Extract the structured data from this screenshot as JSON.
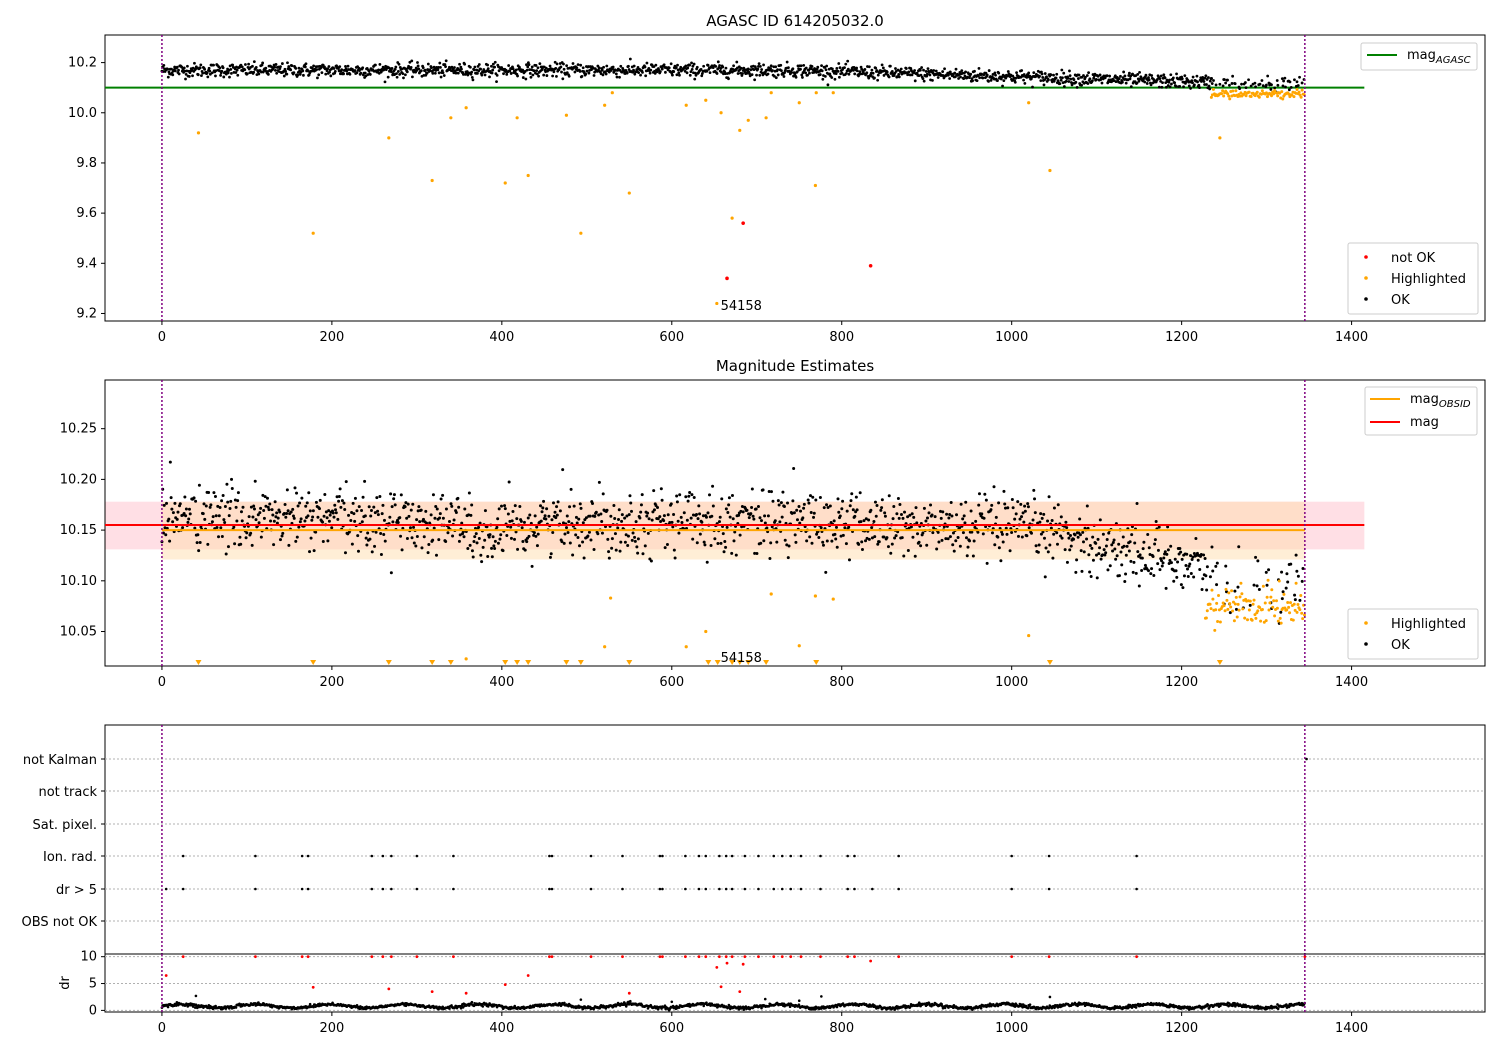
{
  "chart_data": [
    {
      "type": "scatter",
      "title": "AGASC ID 614205032.0",
      "xlabel": "",
      "ylabel": "",
      "xlim": [
        -67,
        1557
      ],
      "ylim": [
        9.17,
        10.31
      ],
      "xticks": [
        "0",
        "200",
        "400",
        "600",
        "800",
        "1000",
        "1200",
        "1400"
      ],
      "xtick_values": [
        0,
        200,
        400,
        600,
        800,
        1000,
        1200,
        1400
      ],
      "yticks": [
        "9.2",
        "9.4",
        "9.6",
        "9.8",
        "10.0",
        "10.2"
      ],
      "ytick_values": [
        9.2,
        9.4,
        9.6,
        9.8,
        10.0,
        10.2
      ],
      "vlines": [
        0,
        1345
      ],
      "hline": {
        "label": "mag",
        "label_sub": "AGASC",
        "value": 10.1,
        "x_range": [
          -67,
          1415
        ],
        "color": "#008000"
      },
      "legend_upper": {
        "position": "top-right"
      },
      "legend_lower": {
        "position": "bottom-right",
        "entries": [
          {
            "label": "not OK",
            "color": "#ff0000"
          },
          {
            "label": "Highlighted",
            "color": "#ffa500"
          },
          {
            "label": "OK",
            "color": "#000000"
          }
        ]
      },
      "annotation": {
        "text": "54158",
        "x": 670,
        "y": 9.19
      },
      "ok_band": {
        "x_range": [
          0,
          1345
        ],
        "center_start": 10.17,
        "center_end": 10.11,
        "spread": 0.03,
        "color": "#000000"
      },
      "highlighted_tail": {
        "x_range": [
          1235,
          1345
        ],
        "center": 10.075,
        "spread": 0.02,
        "color": "#ffa500"
      },
      "highlighted_points": [
        [
          43,
          9.92
        ],
        [
          178,
          9.52
        ],
        [
          267,
          9.9
        ],
        [
          318,
          9.73
        ],
        [
          340,
          9.98
        ],
        [
          358,
          10.02
        ],
        [
          404,
          9.72
        ],
        [
          418,
          9.98
        ],
        [
          431,
          9.75
        ],
        [
          476,
          9.99
        ],
        [
          493,
          9.52
        ],
        [
          521,
          10.03
        ],
        [
          530,
          10.08
        ],
        [
          550,
          9.68
        ],
        [
          617,
          10.03
        ],
        [
          640,
          10.05
        ],
        [
          653,
          9.24
        ],
        [
          658,
          10.0
        ],
        [
          671,
          9.58
        ],
        [
          680,
          9.93
        ],
        [
          690,
          9.97
        ],
        [
          711,
          9.98
        ],
        [
          717,
          10.08
        ],
        [
          750,
          10.04
        ],
        [
          769,
          9.71
        ],
        [
          770,
          10.08
        ],
        [
          790,
          10.08
        ],
        [
          1020,
          10.04
        ],
        [
          1045,
          9.77
        ],
        [
          1245,
          9.9
        ]
      ],
      "notok_points": [
        [
          665,
          9.34
        ],
        [
          684,
          9.56
        ],
        [
          834,
          9.39
        ]
      ]
    },
    {
      "type": "scatter",
      "title": "Magnitude Estimates",
      "xlabel": "",
      "ylabel": "",
      "xlim": [
        -67,
        1557
      ],
      "ylim": [
        10.016,
        10.298
      ],
      "xticks": [
        "0",
        "200",
        "400",
        "600",
        "800",
        "1000",
        "1200",
        "1400"
      ],
      "xtick_values": [
        0,
        200,
        400,
        600,
        800,
        1000,
        1200,
        1400
      ],
      "yticks": [
        "10.05",
        "10.10",
        "10.15",
        "10.20",
        "10.25"
      ],
      "ytick_values": [
        10.05,
        10.1,
        10.15,
        10.2,
        10.25
      ],
      "vlines": [
        0,
        1345
      ],
      "mag_line": {
        "label": "mag",
        "value": 10.155,
        "x_range": [
          -67,
          1415
        ],
        "band": [
          10.131,
          10.178
        ],
        "color": "#ff0000",
        "band_color": "#ffc0cb"
      },
      "mag_obsid_line": {
        "label": "mag",
        "label_sub": "OBSID",
        "value": 10.15,
        "x_range": [
          0,
          1345
        ],
        "band": [
          10.121,
          10.178
        ],
        "color": "#ffa500",
        "band_color": "#ffdead"
      },
      "legend_upper": {
        "position": "top-right"
      },
      "legend_lower": {
        "position": "bottom-right",
        "entries": [
          {
            "label": "Highlighted",
            "color": "#ffa500"
          },
          {
            "label": "OK",
            "color": "#000000"
          }
        ]
      },
      "annotation": {
        "text": "54158",
        "x": 670,
        "y": 10.024
      },
      "ok_band": {
        "segments": [
          [
            0,
            10.163
          ],
          [
            350,
            10.158
          ],
          [
            380,
            10.14
          ],
          [
            450,
            10.158
          ],
          [
            700,
            10.16
          ],
          [
            900,
            10.152
          ],
          [
            1050,
            10.15
          ],
          [
            1100,
            10.135
          ],
          [
            1200,
            10.12
          ],
          [
            1260,
            10.095
          ],
          [
            1345,
            10.095
          ]
        ],
        "spread": 0.028,
        "color": "#000000"
      },
      "highlighted_tail": {
        "x_range": [
          1228,
          1345
        ],
        "center": 10.075,
        "spread": 0.02,
        "color": "#ffa500"
      },
      "highlighted_points": [
        [
          528,
          10.083
        ],
        [
          521,
          10.035
        ],
        [
          617,
          10.035
        ],
        [
          640,
          10.05
        ],
        [
          717,
          10.087
        ],
        [
          750,
          10.036
        ],
        [
          769,
          10.085
        ],
        [
          790,
          10.082
        ],
        [
          1020,
          10.046
        ],
        [
          358,
          10.023
        ]
      ],
      "lower_limit_markers": [
        43,
        178,
        267,
        318,
        340,
        404,
        418,
        431,
        476,
        493,
        550,
        643,
        654,
        671,
        680,
        690,
        711,
        770,
        1045,
        1245
      ]
    },
    {
      "type": "scatter",
      "title": "",
      "xlabel": "",
      "ylabel": "",
      "xlim": [
        -67,
        1557
      ],
      "xticks": [
        "0",
        "200",
        "400",
        "600",
        "800",
        "1000",
        "1200",
        "1400"
      ],
      "xtick_values": [
        0,
        200,
        400,
        600,
        800,
        1000,
        1200,
        1400
      ],
      "vlines": [
        0,
        1345
      ],
      "categories": [
        "not Kalman",
        "not track",
        "Sat. pixel.",
        "Ion. rad.",
        "dr > 5",
        "OBS not OK"
      ],
      "flag_points": {
        "Ion. rad.": [
          25,
          110,
          165,
          172,
          247,
          260,
          270,
          300,
          343,
          456,
          459,
          505,
          542,
          586,
          589,
          616,
          632,
          640,
          656,
          664,
          671,
          686,
          702,
          720,
          730,
          740,
          752,
          775,
          807,
          815,
          867,
          1000,
          1044,
          1147
        ],
        "dr > 5": [
          5,
          25,
          110,
          165,
          172,
          247,
          260,
          270,
          300,
          343,
          456,
          459,
          505,
          542,
          586,
          589,
          616,
          632,
          640,
          656,
          664,
          671,
          686,
          702,
          720,
          730,
          740,
          752,
          775,
          807,
          815,
          836,
          867,
          1000,
          1044,
          1147
        ],
        "not Kalman": [
          1347
        ]
      }
    },
    {
      "type": "scatter",
      "title": "",
      "xlabel": "",
      "ylabel": "dr",
      "xlim": [
        -67,
        1557
      ],
      "ylim": [
        -0.3,
        10.5
      ],
      "xticks": [
        "0",
        "200",
        "400",
        "600",
        "800",
        "1000",
        "1200",
        "1400"
      ],
      "xtick_values": [
        0,
        200,
        400,
        600,
        800,
        1000,
        1200,
        1400
      ],
      "yticks": [
        "0",
        "5",
        "10"
      ],
      "ytick_values": [
        0,
        5,
        10
      ],
      "vlines": [
        0,
        1345
      ],
      "red_points": [
        [
          5,
          6.5
        ],
        [
          25,
          10
        ],
        [
          110,
          10
        ],
        [
          165,
          10
        ],
        [
          172,
          10
        ],
        [
          178,
          4.3
        ],
        [
          247,
          10
        ],
        [
          260,
          10
        ],
        [
          267,
          4
        ],
        [
          270,
          10
        ],
        [
          300,
          10
        ],
        [
          318,
          3.5
        ],
        [
          343,
          10
        ],
        [
          358,
          3.2
        ],
        [
          404,
          4.8
        ],
        [
          431,
          6.5
        ],
        [
          456,
          10
        ],
        [
          459,
          10
        ],
        [
          505,
          10
        ],
        [
          542,
          10
        ],
        [
          550,
          3.2
        ],
        [
          586,
          10
        ],
        [
          589,
          10
        ],
        [
          616,
          10
        ],
        [
          632,
          10
        ],
        [
          640,
          10
        ],
        [
          653,
          8
        ],
        [
          656,
          10
        ],
        [
          658,
          4.4
        ],
        [
          664,
          10
        ],
        [
          665,
          8.8
        ],
        [
          671,
          10
        ],
        [
          680,
          3.5
        ],
        [
          684,
          8.6
        ],
        [
          686,
          10
        ],
        [
          702,
          10
        ],
        [
          720,
          10
        ],
        [
          730,
          10
        ],
        [
          740,
          10
        ],
        [
          752,
          10
        ],
        [
          775,
          10
        ],
        [
          807,
          10
        ],
        [
          815,
          10
        ],
        [
          834,
          9.2
        ],
        [
          867,
          10
        ],
        [
          1000,
          10
        ],
        [
          1044,
          10
        ],
        [
          1147,
          10
        ],
        [
          1345,
          10
        ]
      ],
      "black_band": {
        "x_range": [
          0,
          1345
        ],
        "center": 0.8,
        "spread": 0.5
      },
      "black_extra": [
        [
          40,
          2.7
        ],
        [
          493,
          2
        ],
        [
          600,
          1.6
        ],
        [
          710,
          2.1
        ],
        [
          750,
          1.8
        ],
        [
          776,
          2.6
        ],
        [
          1045,
          2.5
        ]
      ]
    }
  ]
}
